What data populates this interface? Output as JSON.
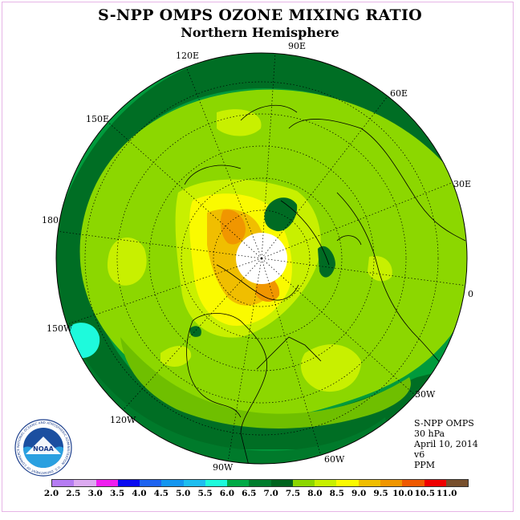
{
  "title": "S-NPP OMPS OZONE MIXING RATIO",
  "subtitle": "Northern Hemisphere",
  "longitude_labels": {
    "e90": "90E",
    "e120": "120E",
    "e60": "60E",
    "e150": "150E",
    "e30": "30E",
    "e180": "180",
    "e0": "0",
    "w150": "150W",
    "w30": "30W",
    "w120": "120W",
    "w60": "60W",
    "w90": "90W"
  },
  "info": {
    "instrument": "S-NPP OMPS",
    "level": "30 hPa",
    "date": "April 10, 2014",
    "version": "v6",
    "unit": "PPM"
  },
  "logo": {
    "text": "NOAA",
    "ring_text": "NATIONAL OCEANIC AND ATMOSPHERIC ADMINISTRATION · U.S. DEPARTMENT OF COMMERCE"
  },
  "colorbar": {
    "labels": [
      "2.0",
      "2.5",
      "3.0",
      "3.5",
      "4.0",
      "4.5",
      "5.0",
      "5.5",
      "6.0",
      "6.5",
      "7.0",
      "7.5",
      "8.0",
      "8.5",
      "9.0",
      "9.5",
      "10.0",
      "10.5",
      "11.0"
    ],
    "colors": [
      "#b57cf2",
      "#dcaaf0",
      "#f01ef0",
      "#0a0af0",
      "#1e64f0",
      "#1496f0",
      "#1ebef0",
      "#1efadc",
      "#00aa46",
      "#007d2d",
      "#00641e",
      "#8cd700",
      "#c8f000",
      "#fafa00",
      "#f0be00",
      "#f09600",
      "#f05a00",
      "#f00000",
      "#78502d"
    ]
  }
}
